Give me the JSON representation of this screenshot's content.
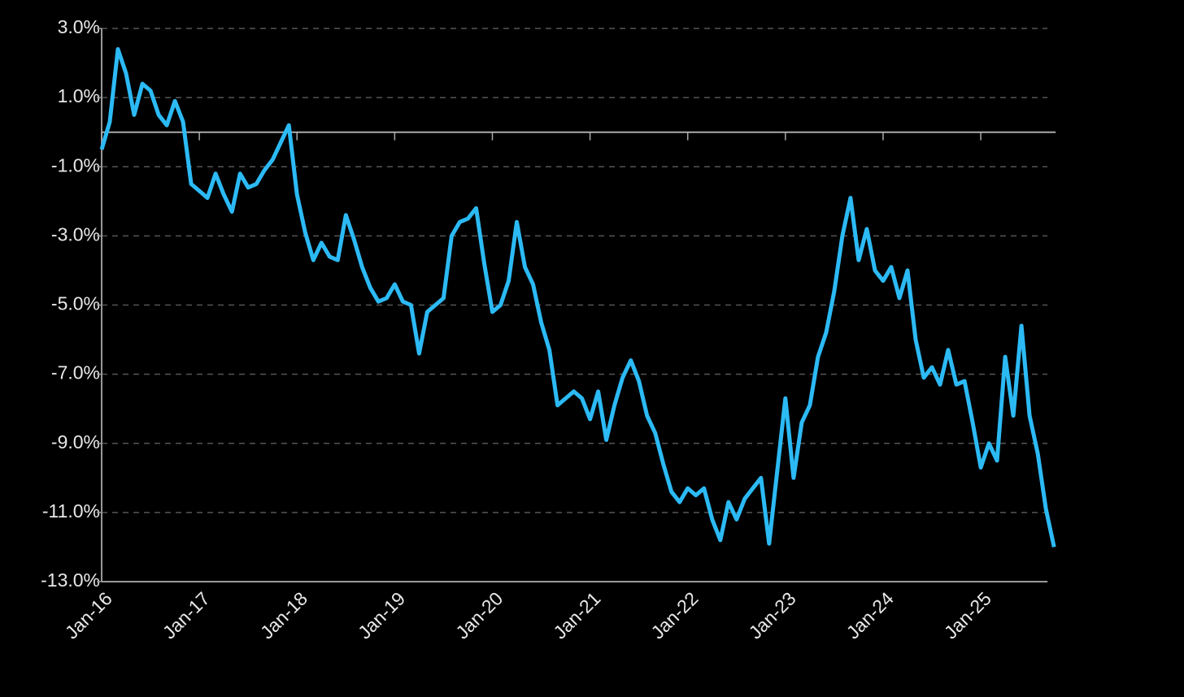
{
  "chart_data": {
    "type": "line",
    "x": [
      "2016-01",
      "2016-02",
      "2016-03",
      "2016-04",
      "2016-05",
      "2016-06",
      "2016-07",
      "2016-08",
      "2016-09",
      "2016-10",
      "2016-11",
      "2016-12",
      "2017-01",
      "2017-02",
      "2017-03",
      "2017-04",
      "2017-05",
      "2017-06",
      "2017-07",
      "2017-08",
      "2017-09",
      "2017-10",
      "2017-11",
      "2017-12",
      "2018-01",
      "2018-02",
      "2018-03",
      "2018-04",
      "2018-05",
      "2018-06",
      "2018-07",
      "2018-08",
      "2018-09",
      "2018-10",
      "2018-11",
      "2018-12",
      "2019-01",
      "2019-02",
      "2019-03",
      "2019-04",
      "2019-05",
      "2019-06",
      "2019-07",
      "2019-08",
      "2019-09",
      "2019-10",
      "2019-11",
      "2019-12",
      "2020-01",
      "2020-02",
      "2020-03",
      "2020-04",
      "2020-05",
      "2020-06",
      "2020-07",
      "2020-08",
      "2020-09",
      "2020-10",
      "2020-11",
      "2020-12",
      "2021-01",
      "2021-02",
      "2021-03",
      "2021-04",
      "2021-05",
      "2021-06",
      "2021-07",
      "2021-08",
      "2021-09",
      "2021-10",
      "2021-11",
      "2021-12",
      "2022-01",
      "2022-02",
      "2022-03",
      "2022-04",
      "2022-05",
      "2022-06",
      "2022-07",
      "2022-08",
      "2022-09",
      "2022-10",
      "2022-11",
      "2022-12",
      "2023-01",
      "2023-02",
      "2023-03",
      "2023-04",
      "2023-05",
      "2023-06",
      "2023-07",
      "2023-08",
      "2023-09",
      "2023-10",
      "2023-11",
      "2023-12",
      "2024-01",
      "2024-02",
      "2024-03",
      "2024-04",
      "2024-05",
      "2024-06",
      "2024-07",
      "2024-08",
      "2024-09",
      "2024-10",
      "2024-11",
      "2024-12",
      "2025-01",
      "2025-02",
      "2025-03",
      "2025-04",
      "2025-05",
      "2025-06",
      "2025-07",
      "2025-08",
      "2025-09",
      "2025-10"
    ],
    "series": [
      {
        "color": "#2cbaf5",
        "values": [
          -0.5,
          0.3,
          2.4,
          1.7,
          0.5,
          1.4,
          1.2,
          0.5,
          0.2,
          0.9,
          0.3,
          -1.5,
          -1.7,
          -1.9,
          -1.2,
          -1.8,
          -2.3,
          -1.2,
          -1.6,
          -1.5,
          -1.1,
          -0.8,
          -0.3,
          0.2,
          -1.8,
          -2.9,
          -3.7,
          -3.2,
          -3.6,
          -3.7,
          -2.4,
          -3.1,
          -3.9,
          -4.5,
          -4.9,
          -4.8,
          -4.4,
          -4.9,
          -5.0,
          -6.4,
          -5.2,
          -5.0,
          -4.8,
          -3.0,
          -2.6,
          -2.5,
          -2.2,
          -3.8,
          -5.2,
          -5.0,
          -4.3,
          -2.6,
          -3.9,
          -4.4,
          -5.5,
          -6.3,
          -7.9,
          -7.7,
          -7.5,
          -7.7,
          -8.3,
          -7.5,
          -8.9,
          -7.9,
          -7.1,
          -6.6,
          -7.2,
          -8.2,
          -8.7,
          -9.6,
          -10.4,
          -10.7,
          -10.3,
          -10.5,
          -10.3,
          -11.2,
          -11.8,
          -10.7,
          -11.2,
          -10.6,
          -10.3,
          -10.0,
          -11.9,
          -9.8,
          -7.7,
          -10.0,
          -8.4,
          -7.9,
          -6.5,
          -5.8,
          -4.6,
          -3.0,
          -1.9,
          -3.7,
          -2.8,
          -4.0,
          -4.3,
          -3.9,
          -4.8,
          -4.0,
          -6.0,
          -7.1,
          -6.8,
          -7.3,
          -6.3,
          -7.3,
          -7.2,
          -8.4,
          -9.7,
          -9.0,
          -9.5,
          -6.5,
          -8.2,
          -5.6,
          -8.2,
          -9.3,
          -10.9,
          -12.0
        ]
      }
    ],
    "xlim": [
      "2016-01",
      "2025-10"
    ],
    "xticks": [
      {
        "value": "2016-01",
        "label": "Jan-16"
      },
      {
        "value": "2017-01",
        "label": "Jan-17"
      },
      {
        "value": "2018-01",
        "label": "Jan-18"
      },
      {
        "value": "2019-01",
        "label": "Jan-19"
      },
      {
        "value": "2020-01",
        "label": "Jan-20"
      },
      {
        "value": "2021-01",
        "label": "Jan-21"
      },
      {
        "value": "2022-01",
        "label": "Jan-22"
      },
      {
        "value": "2023-01",
        "label": "Jan-23"
      },
      {
        "value": "2024-01",
        "label": "Jan-24"
      },
      {
        "value": "2025-01",
        "label": "Jan-25"
      }
    ],
    "ylim": [
      -13,
      3
    ],
    "yticks": [
      {
        "value": 3,
        "label": "3.0%"
      },
      {
        "value": 1,
        "label": "1.0%"
      },
      {
        "value": -1,
        "label": "-1.0%"
      },
      {
        "value": -3,
        "label": "-3.0%"
      },
      {
        "value": -5,
        "label": "-5.0%"
      },
      {
        "value": -7,
        "label": "-7.0%"
      },
      {
        "value": -9,
        "label": "-9.0%"
      },
      {
        "value": -11,
        "label": "-11.0%"
      },
      {
        "value": -13,
        "label": "-13.0%"
      }
    ],
    "grid": true,
    "zero_line": true
  }
}
